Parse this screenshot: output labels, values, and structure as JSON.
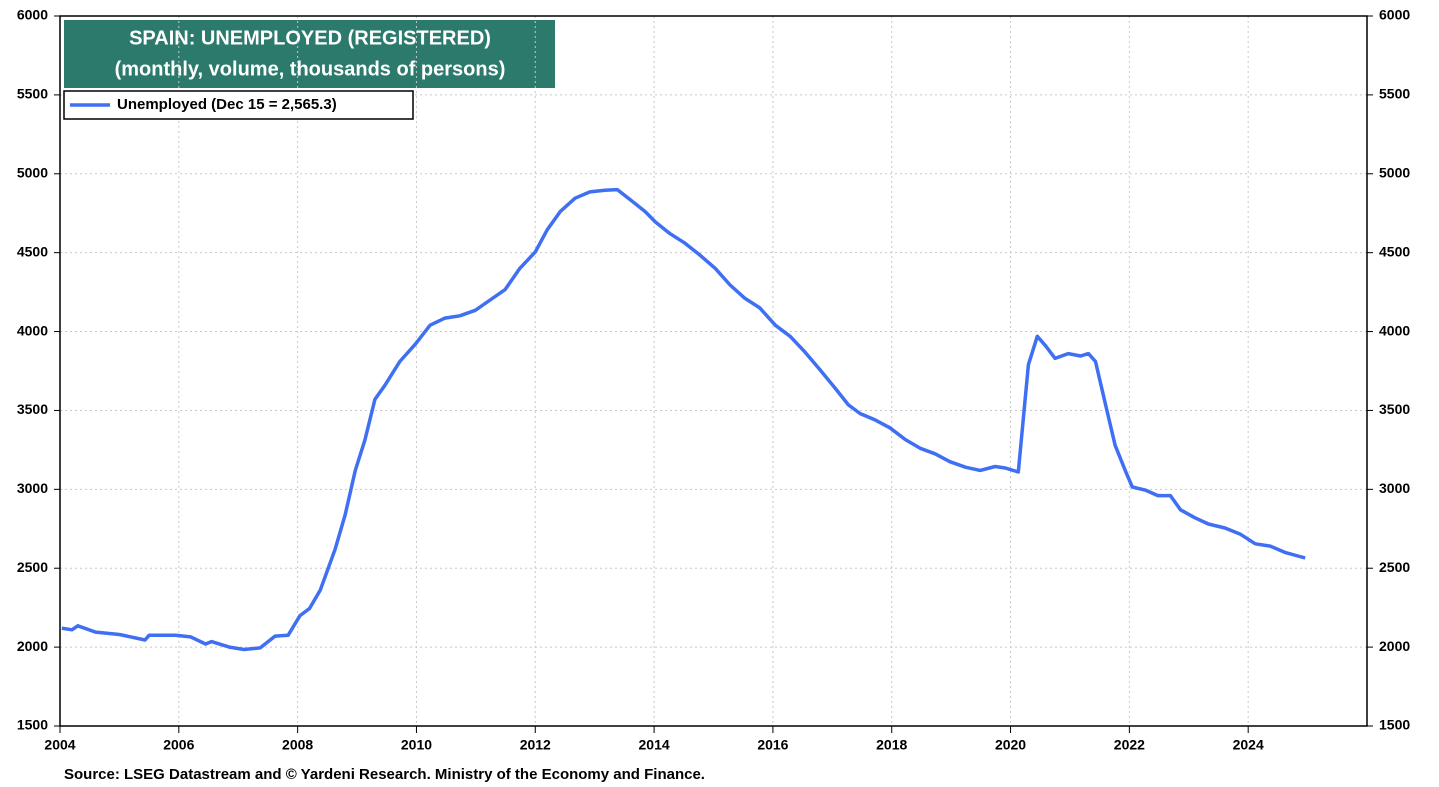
{
  "chart_data": {
    "type": "line",
    "title": "SPAIN: UNEMPLOYED (REGISTERED)",
    "subtitle": "(monthly, volume, thousands of persons)",
    "source": "Source: LSEG Datastream and © Yardeni Research. Ministry of the Economy and Finance.",
    "xlim": [
      2004,
      2026
    ],
    "xticks": [
      2004,
      2006,
      2008,
      2010,
      2012,
      2014,
      2016,
      2018,
      2020,
      2022,
      2024
    ],
    "ylim": [
      1500,
      6000
    ],
    "yticks": [
      1500,
      2000,
      2500,
      3000,
      3500,
      4000,
      4500,
      5000,
      5500,
      6000
    ],
    "grid": true,
    "legend": "upper left",
    "series": [
      {
        "name": "Unemployed (Dec 15 = 2,565.3)",
        "color": "#3f6ff2",
        "x": [
          2004.03,
          2004.2,
          2004.3,
          2004.6,
          2005.0,
          2005.43,
          2005.5,
          2005.94,
          2006.2,
          2006.45,
          2006.55,
          2006.85,
          2007.1,
          2007.37,
          2007.62,
          2007.84,
          2008.04,
          2008.2,
          2008.38,
          2008.63,
          2008.8,
          2008.97,
          2009.13,
          2009.3,
          2009.47,
          2009.72,
          2009.98,
          2010.23,
          2010.48,
          2010.73,
          2010.99,
          2011.24,
          2011.49,
          2011.74,
          2012.0,
          2012.2,
          2012.42,
          2012.67,
          2012.92,
          2013.17,
          2013.38,
          2013.6,
          2013.85,
          2014.02,
          2014.27,
          2014.52,
          2014.77,
          2015.03,
          2015.28,
          2015.53,
          2015.78,
          2016.04,
          2016.29,
          2016.54,
          2016.8,
          2017.05,
          2017.27,
          2017.47,
          2017.72,
          2017.97,
          2018.23,
          2018.48,
          2018.73,
          2018.98,
          2019.24,
          2019.49,
          2019.74,
          2019.91,
          2020.13,
          2020.3,
          2020.45,
          2020.59,
          2020.75,
          2020.97,
          2021.18,
          2021.31,
          2021.43,
          2021.6,
          2021.76,
          2021.93,
          2022.05,
          2022.27,
          2022.48,
          2022.69,
          2022.86,
          2023.1,
          2023.33,
          2023.61,
          2023.87,
          2024.12,
          2024.37,
          2024.62,
          2024.96
        ],
        "values": [
          2120,
          2110,
          2135,
          2095,
          2080,
          2045,
          2075,
          2075,
          2065,
          2020,
          2035,
          2000,
          1985,
          1995,
          2070,
          2075,
          2200,
          2245,
          2360,
          2620,
          2840,
          3120,
          3310,
          3570,
          3660,
          3810,
          3920,
          4040,
          4085,
          4100,
          4135,
          4200,
          4265,
          4400,
          4505,
          4645,
          4760,
          4845,
          4885,
          4895,
          4900,
          4835,
          4760,
          4695,
          4620,
          4560,
          4485,
          4400,
          4295,
          4210,
          4150,
          4040,
          3970,
          3870,
          3755,
          3640,
          3535,
          3480,
          3440,
          3390,
          3315,
          3260,
          3225,
          3175,
          3140,
          3120,
          3145,
          3135,
          3110,
          3790,
          3970,
          3910,
          3830,
          3860,
          3845,
          3860,
          3810,
          3535,
          3280,
          3120,
          3015,
          2995,
          2960,
          2960,
          2870,
          2820,
          2780,
          2755,
          2715,
          2655,
          2640,
          2600,
          2565
        ]
      }
    ]
  }
}
